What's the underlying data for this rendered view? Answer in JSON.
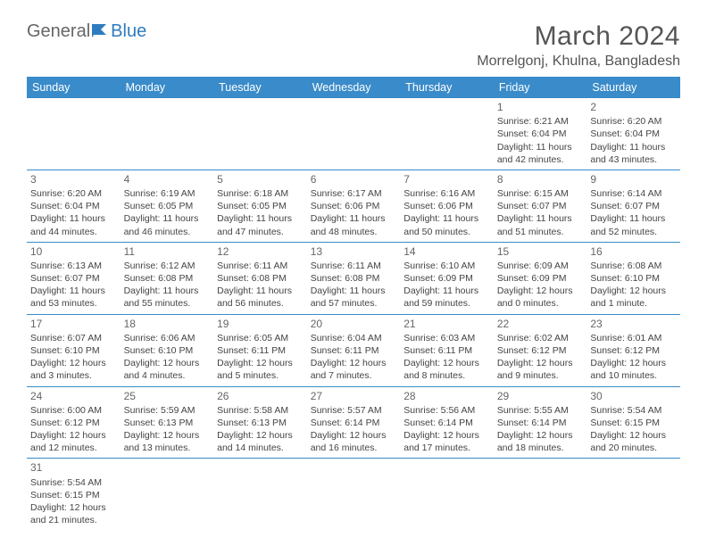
{
  "logo": {
    "text1": "General",
    "text2": "Blue"
  },
  "title": "March 2024",
  "location": "Morrelgonj, Khulna, Bangladesh",
  "headers": [
    "Sunday",
    "Monday",
    "Tuesday",
    "Wednesday",
    "Thursday",
    "Friday",
    "Saturday"
  ],
  "header_bg": "#3a8bc9",
  "cells": [
    [
      null,
      null,
      null,
      null,
      null,
      {
        "n": "1",
        "sr": "6:21 AM",
        "ss": "6:04 PM",
        "d1": "11 hours",
        "d2": "and 42 minutes."
      },
      {
        "n": "2",
        "sr": "6:20 AM",
        "ss": "6:04 PM",
        "d1": "11 hours",
        "d2": "and 43 minutes."
      }
    ],
    [
      {
        "n": "3",
        "sr": "6:20 AM",
        "ss": "6:04 PM",
        "d1": "11 hours",
        "d2": "and 44 minutes."
      },
      {
        "n": "4",
        "sr": "6:19 AM",
        "ss": "6:05 PM",
        "d1": "11 hours",
        "d2": "and 46 minutes."
      },
      {
        "n": "5",
        "sr": "6:18 AM",
        "ss": "6:05 PM",
        "d1": "11 hours",
        "d2": "and 47 minutes."
      },
      {
        "n": "6",
        "sr": "6:17 AM",
        "ss": "6:06 PM",
        "d1": "11 hours",
        "d2": "and 48 minutes."
      },
      {
        "n": "7",
        "sr": "6:16 AM",
        "ss": "6:06 PM",
        "d1": "11 hours",
        "d2": "and 50 minutes."
      },
      {
        "n": "8",
        "sr": "6:15 AM",
        "ss": "6:07 PM",
        "d1": "11 hours",
        "d2": "and 51 minutes."
      },
      {
        "n": "9",
        "sr": "6:14 AM",
        "ss": "6:07 PM",
        "d1": "11 hours",
        "d2": "and 52 minutes."
      }
    ],
    [
      {
        "n": "10",
        "sr": "6:13 AM",
        "ss": "6:07 PM",
        "d1": "11 hours",
        "d2": "and 53 minutes."
      },
      {
        "n": "11",
        "sr": "6:12 AM",
        "ss": "6:08 PM",
        "d1": "11 hours",
        "d2": "and 55 minutes."
      },
      {
        "n": "12",
        "sr": "6:11 AM",
        "ss": "6:08 PM",
        "d1": "11 hours",
        "d2": "and 56 minutes."
      },
      {
        "n": "13",
        "sr": "6:11 AM",
        "ss": "6:08 PM",
        "d1": "11 hours",
        "d2": "and 57 minutes."
      },
      {
        "n": "14",
        "sr": "6:10 AM",
        "ss": "6:09 PM",
        "d1": "11 hours",
        "d2": "and 59 minutes."
      },
      {
        "n": "15",
        "sr": "6:09 AM",
        "ss": "6:09 PM",
        "d1": "12 hours",
        "d2": "and 0 minutes."
      },
      {
        "n": "16",
        "sr": "6:08 AM",
        "ss": "6:10 PM",
        "d1": "12 hours",
        "d2": "and 1 minute."
      }
    ],
    [
      {
        "n": "17",
        "sr": "6:07 AM",
        "ss": "6:10 PM",
        "d1": "12 hours",
        "d2": "and 3 minutes."
      },
      {
        "n": "18",
        "sr": "6:06 AM",
        "ss": "6:10 PM",
        "d1": "12 hours",
        "d2": "and 4 minutes."
      },
      {
        "n": "19",
        "sr": "6:05 AM",
        "ss": "6:11 PM",
        "d1": "12 hours",
        "d2": "and 5 minutes."
      },
      {
        "n": "20",
        "sr": "6:04 AM",
        "ss": "6:11 PM",
        "d1": "12 hours",
        "d2": "and 7 minutes."
      },
      {
        "n": "21",
        "sr": "6:03 AM",
        "ss": "6:11 PM",
        "d1": "12 hours",
        "d2": "and 8 minutes."
      },
      {
        "n": "22",
        "sr": "6:02 AM",
        "ss": "6:12 PM",
        "d1": "12 hours",
        "d2": "and 9 minutes."
      },
      {
        "n": "23",
        "sr": "6:01 AM",
        "ss": "6:12 PM",
        "d1": "12 hours",
        "d2": "and 10 minutes."
      }
    ],
    [
      {
        "n": "24",
        "sr": "6:00 AM",
        "ss": "6:12 PM",
        "d1": "12 hours",
        "d2": "and 12 minutes."
      },
      {
        "n": "25",
        "sr": "5:59 AM",
        "ss": "6:13 PM",
        "d1": "12 hours",
        "d2": "and 13 minutes."
      },
      {
        "n": "26",
        "sr": "5:58 AM",
        "ss": "6:13 PM",
        "d1": "12 hours",
        "d2": "and 14 minutes."
      },
      {
        "n": "27",
        "sr": "5:57 AM",
        "ss": "6:14 PM",
        "d1": "12 hours",
        "d2": "and 16 minutes."
      },
      {
        "n": "28",
        "sr": "5:56 AM",
        "ss": "6:14 PM",
        "d1": "12 hours",
        "d2": "and 17 minutes."
      },
      {
        "n": "29",
        "sr": "5:55 AM",
        "ss": "6:14 PM",
        "d1": "12 hours",
        "d2": "and 18 minutes."
      },
      {
        "n": "30",
        "sr": "5:54 AM",
        "ss": "6:15 PM",
        "d1": "12 hours",
        "d2": "and 20 minutes."
      }
    ],
    [
      {
        "n": "31",
        "sr": "5:54 AM",
        "ss": "6:15 PM",
        "d1": "12 hours",
        "d2": "and 21 minutes."
      },
      null,
      null,
      null,
      null,
      null,
      null
    ]
  ]
}
